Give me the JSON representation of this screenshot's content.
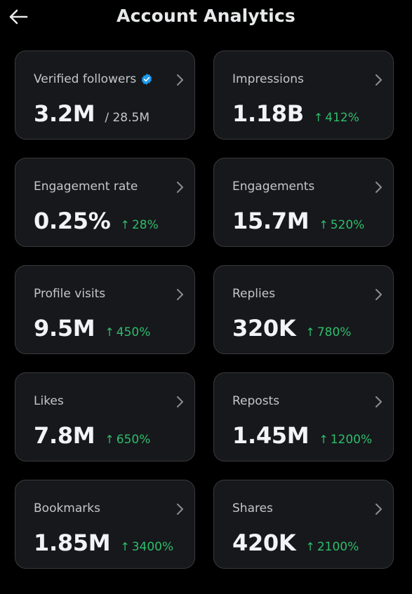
{
  "header": {
    "title": "Account Analytics",
    "back_icon": "arrow-left-icon"
  },
  "colors": {
    "background": "#000000",
    "card": "#16181c",
    "card_border": "#3a3a3a",
    "positive": "#2fbd6b",
    "verified": "#1d9bf0"
  },
  "cards": [
    {
      "label": "Verified followers",
      "value": "3.2M",
      "total": "/ 28.5M",
      "change": "",
      "verified_badge": true
    },
    {
      "label": "Impressions",
      "value": "1.18B",
      "total": "",
      "change": "412%"
    },
    {
      "label": "Engagement rate",
      "value": "0.25%",
      "total": "",
      "change": "28%"
    },
    {
      "label": "Engagements",
      "value": "15.7M",
      "total": "",
      "change": "520%"
    },
    {
      "label": "Profile visits",
      "value": "9.5M",
      "total": "",
      "change": "450%"
    },
    {
      "label": "Replies",
      "value": "320K",
      "total": "",
      "change": "780%"
    },
    {
      "label": "Likes",
      "value": "7.8M",
      "total": "",
      "change": "650%"
    },
    {
      "label": "Reposts",
      "value": "1.45M",
      "total": "",
      "change": "1200%"
    },
    {
      "label": "Bookmarks",
      "value": "1.85M",
      "total": "",
      "change": "3400%"
    },
    {
      "label": "Shares",
      "value": "420K",
      "total": "",
      "change": "2100%"
    }
  ]
}
